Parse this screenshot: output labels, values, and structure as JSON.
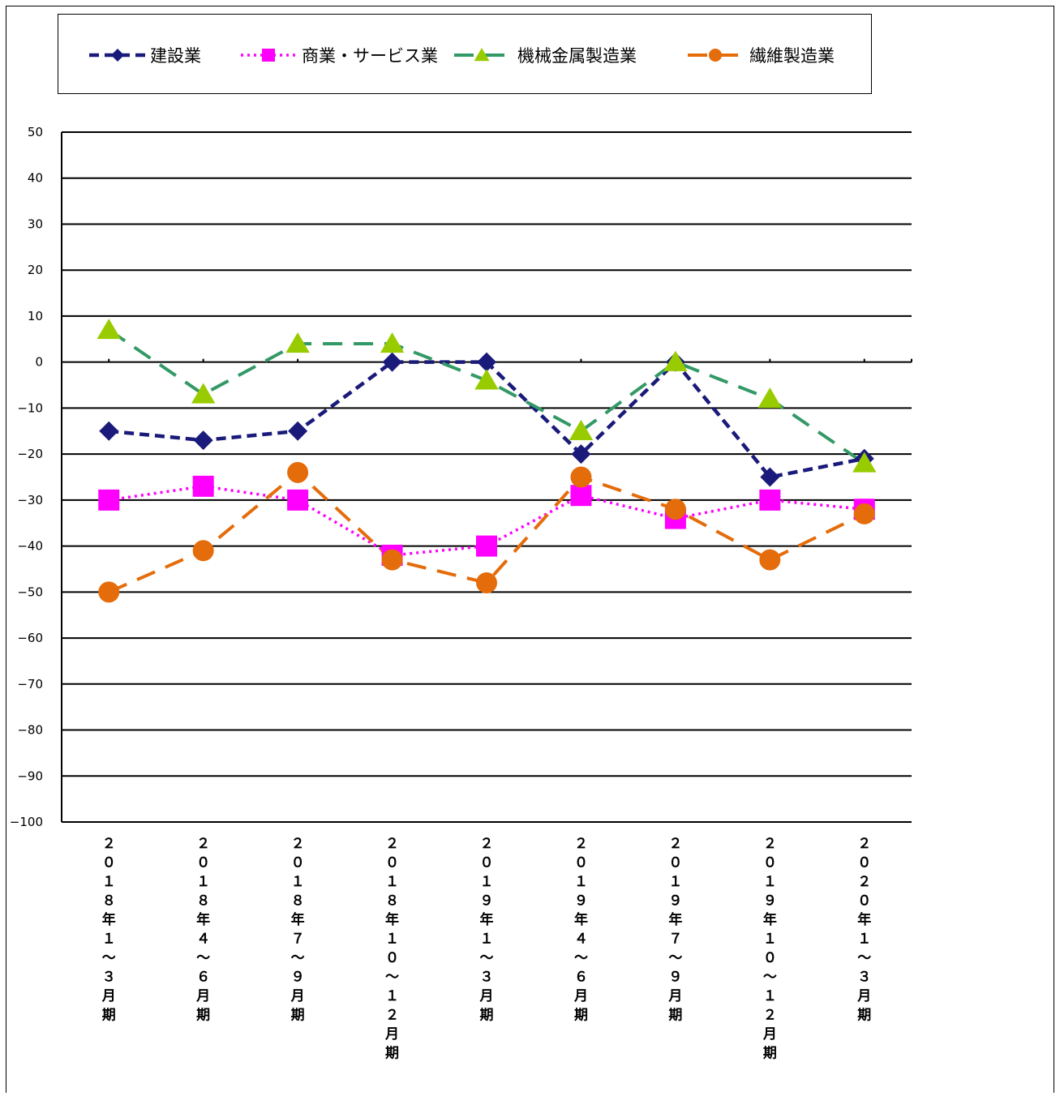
{
  "chart_data": {
    "type": "line",
    "categories": [
      "２０１８年１〜３月期",
      "２０１８年４〜６月期",
      "２０１８年７〜９月期",
      "２０１８年１０〜１２月期",
      "２０１９年１〜３月期",
      "２０１９年４〜６月期",
      "２０１９年７〜９月期",
      "２０１９年１０〜１２月期",
      "２０２０年１〜３月期"
    ],
    "series": [
      {
        "name": "建設業",
        "values": [
          -15,
          -17,
          -15,
          0,
          0,
          -20,
          0,
          -25,
          -21
        ],
        "color": "#1a1a7a",
        "marker": "diamond",
        "dash": "dash"
      },
      {
        "name": "商業・サービス業",
        "values": [
          -30,
          -27,
          -30,
          -42,
          -40,
          -29,
          -34,
          -30,
          -32
        ],
        "color": "#ff00ff",
        "marker": "square",
        "dash": "dot"
      },
      {
        "name": "機械金属製造業",
        "values": [
          7,
          -7,
          4,
          4,
          -4,
          -15,
          0,
          -8,
          -22
        ],
        "color": "#339966",
        "marker_color": "#99cc00",
        "marker": "triangle",
        "dash": "longdash"
      },
      {
        "name": "繊維製造業",
        "values": [
          -50,
          -41,
          -24,
          -43,
          -48,
          -25,
          -32,
          -43,
          -33
        ],
        "color": "#e46c0a",
        "marker": "circle",
        "dash": "longdash"
      }
    ],
    "yticks": [
      50,
      40,
      30,
      20,
      10,
      0,
      -10,
      -20,
      -30,
      -40,
      -50,
      -60,
      -70,
      -80,
      -90,
      -100
    ],
    "ylim": [
      -100,
      50
    ],
    "grid": true,
    "legend": "top"
  }
}
